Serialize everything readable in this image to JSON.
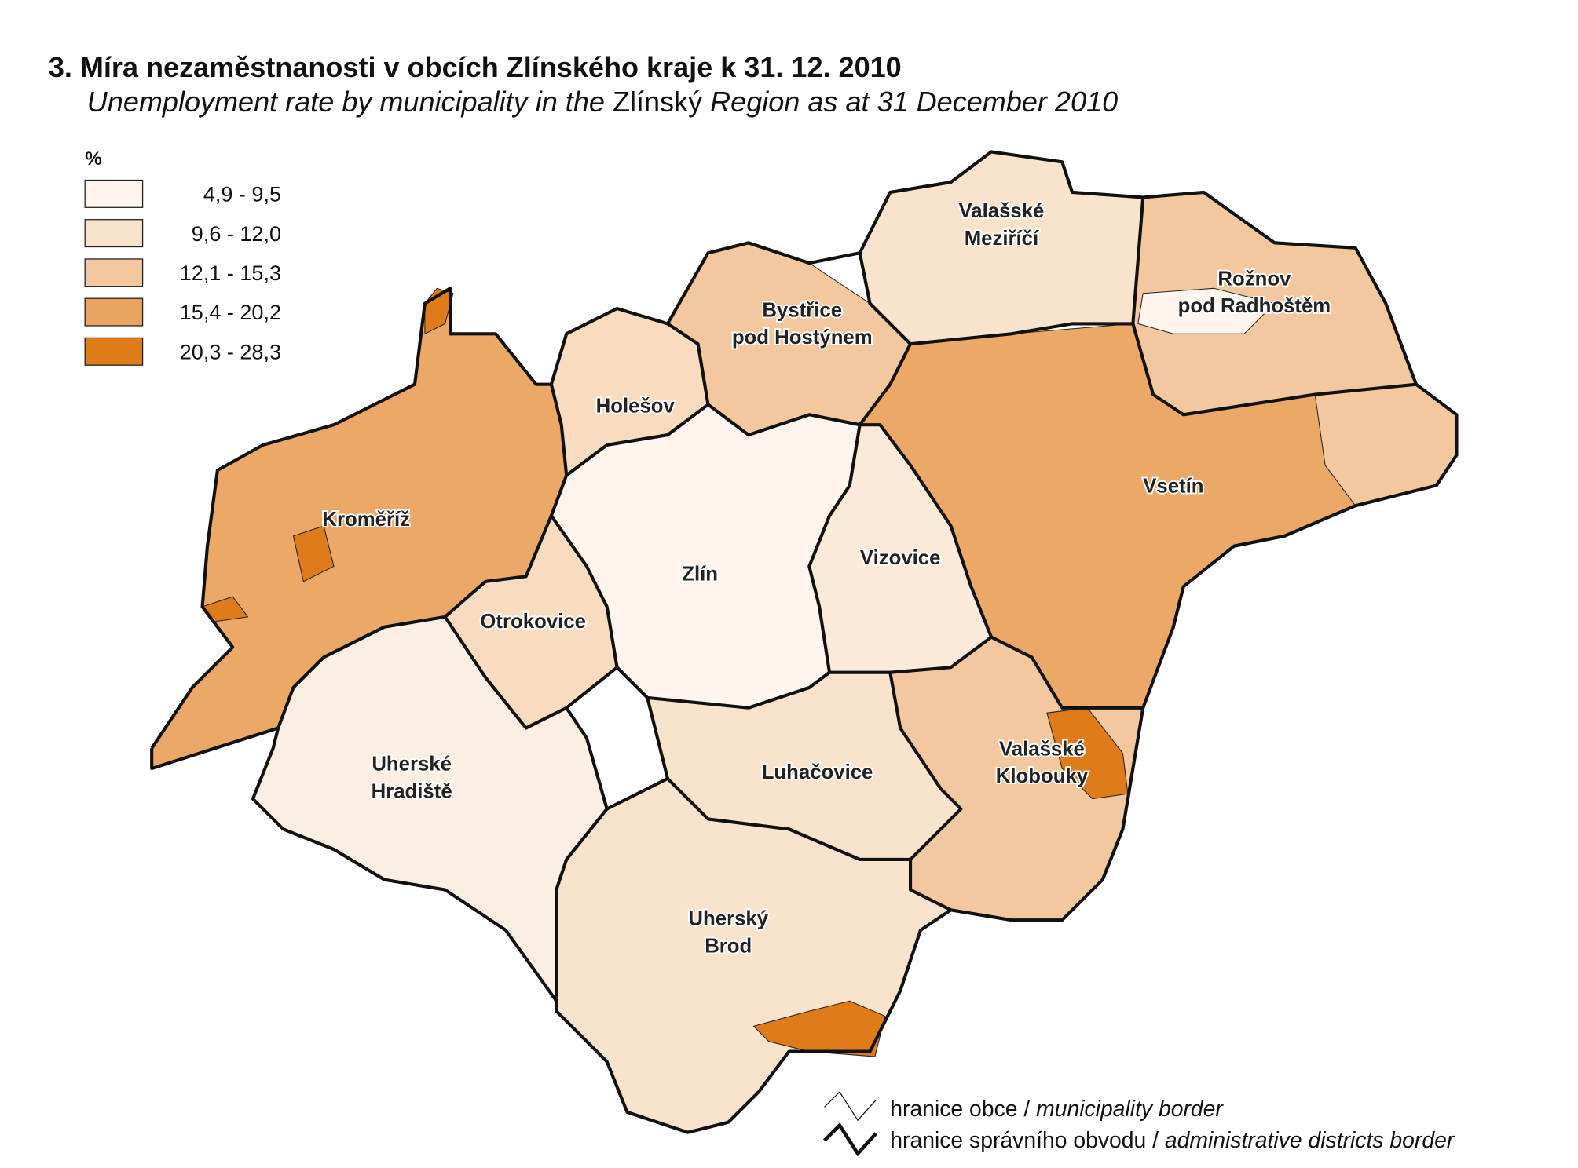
{
  "title": "3. Míra nezaměstnanosti v obcích Zlínského kraje k 31. 12. 2010",
  "subtitle": [
    {
      "text": "Unemployment rate by municipality in the ",
      "italic": true
    },
    {
      "text": "Zlínský",
      "italic": false
    },
    {
      "text": " Region as at 31 December 2010",
      "italic": true
    }
  ],
  "legend": {
    "unit": "%",
    "classes": [
      {
        "label": "4,9 -   9,5",
        "color": "#fdf5ee"
      },
      {
        "label": "9,6 - 12,0",
        "color": "#f9e3cd"
      },
      {
        "label": "12,1 - 15,3",
        "color": "#f3c89f"
      },
      {
        "label": "15,4 - 20,2",
        "color": "#e9a55f"
      },
      {
        "label": "20,3 - 28,3",
        "color": "#e07b1a"
      }
    ]
  },
  "districts": [
    {
      "lines": [
        "Valašské",
        "Meziříčí"
      ]
    },
    {
      "lines": [
        "Rožnov",
        "pod Radhoštěm"
      ]
    },
    {
      "lines": [
        "Bystřice",
        "pod Hostýnem"
      ]
    },
    {
      "lines": [
        "Holešov"
      ]
    },
    {
      "lines": [
        "Kroměříž"
      ]
    },
    {
      "lines": [
        "Vsetín"
      ]
    },
    {
      "lines": [
        "Vizovice"
      ]
    },
    {
      "lines": [
        "Zlín"
      ]
    },
    {
      "lines": [
        "Otrokovice"
      ]
    },
    {
      "lines": [
        "Uherské",
        "Hradiště"
      ]
    },
    {
      "lines": [
        "Luhačovice"
      ]
    },
    {
      "lines": [
        "Valašské",
        "Klobouky"
      ]
    },
    {
      "lines": [
        "Uherský",
        "Brod"
      ]
    }
  ],
  "border_legend": [
    [
      {
        "text": "hranice obce / ",
        "italic": false
      },
      {
        "text": "municipality border",
        "italic": true
      }
    ],
    [
      {
        "text": "hranice správního obvodu / ",
        "italic": false
      },
      {
        "text": "administrative districts border",
        "italic": true
      }
    ]
  ]
}
